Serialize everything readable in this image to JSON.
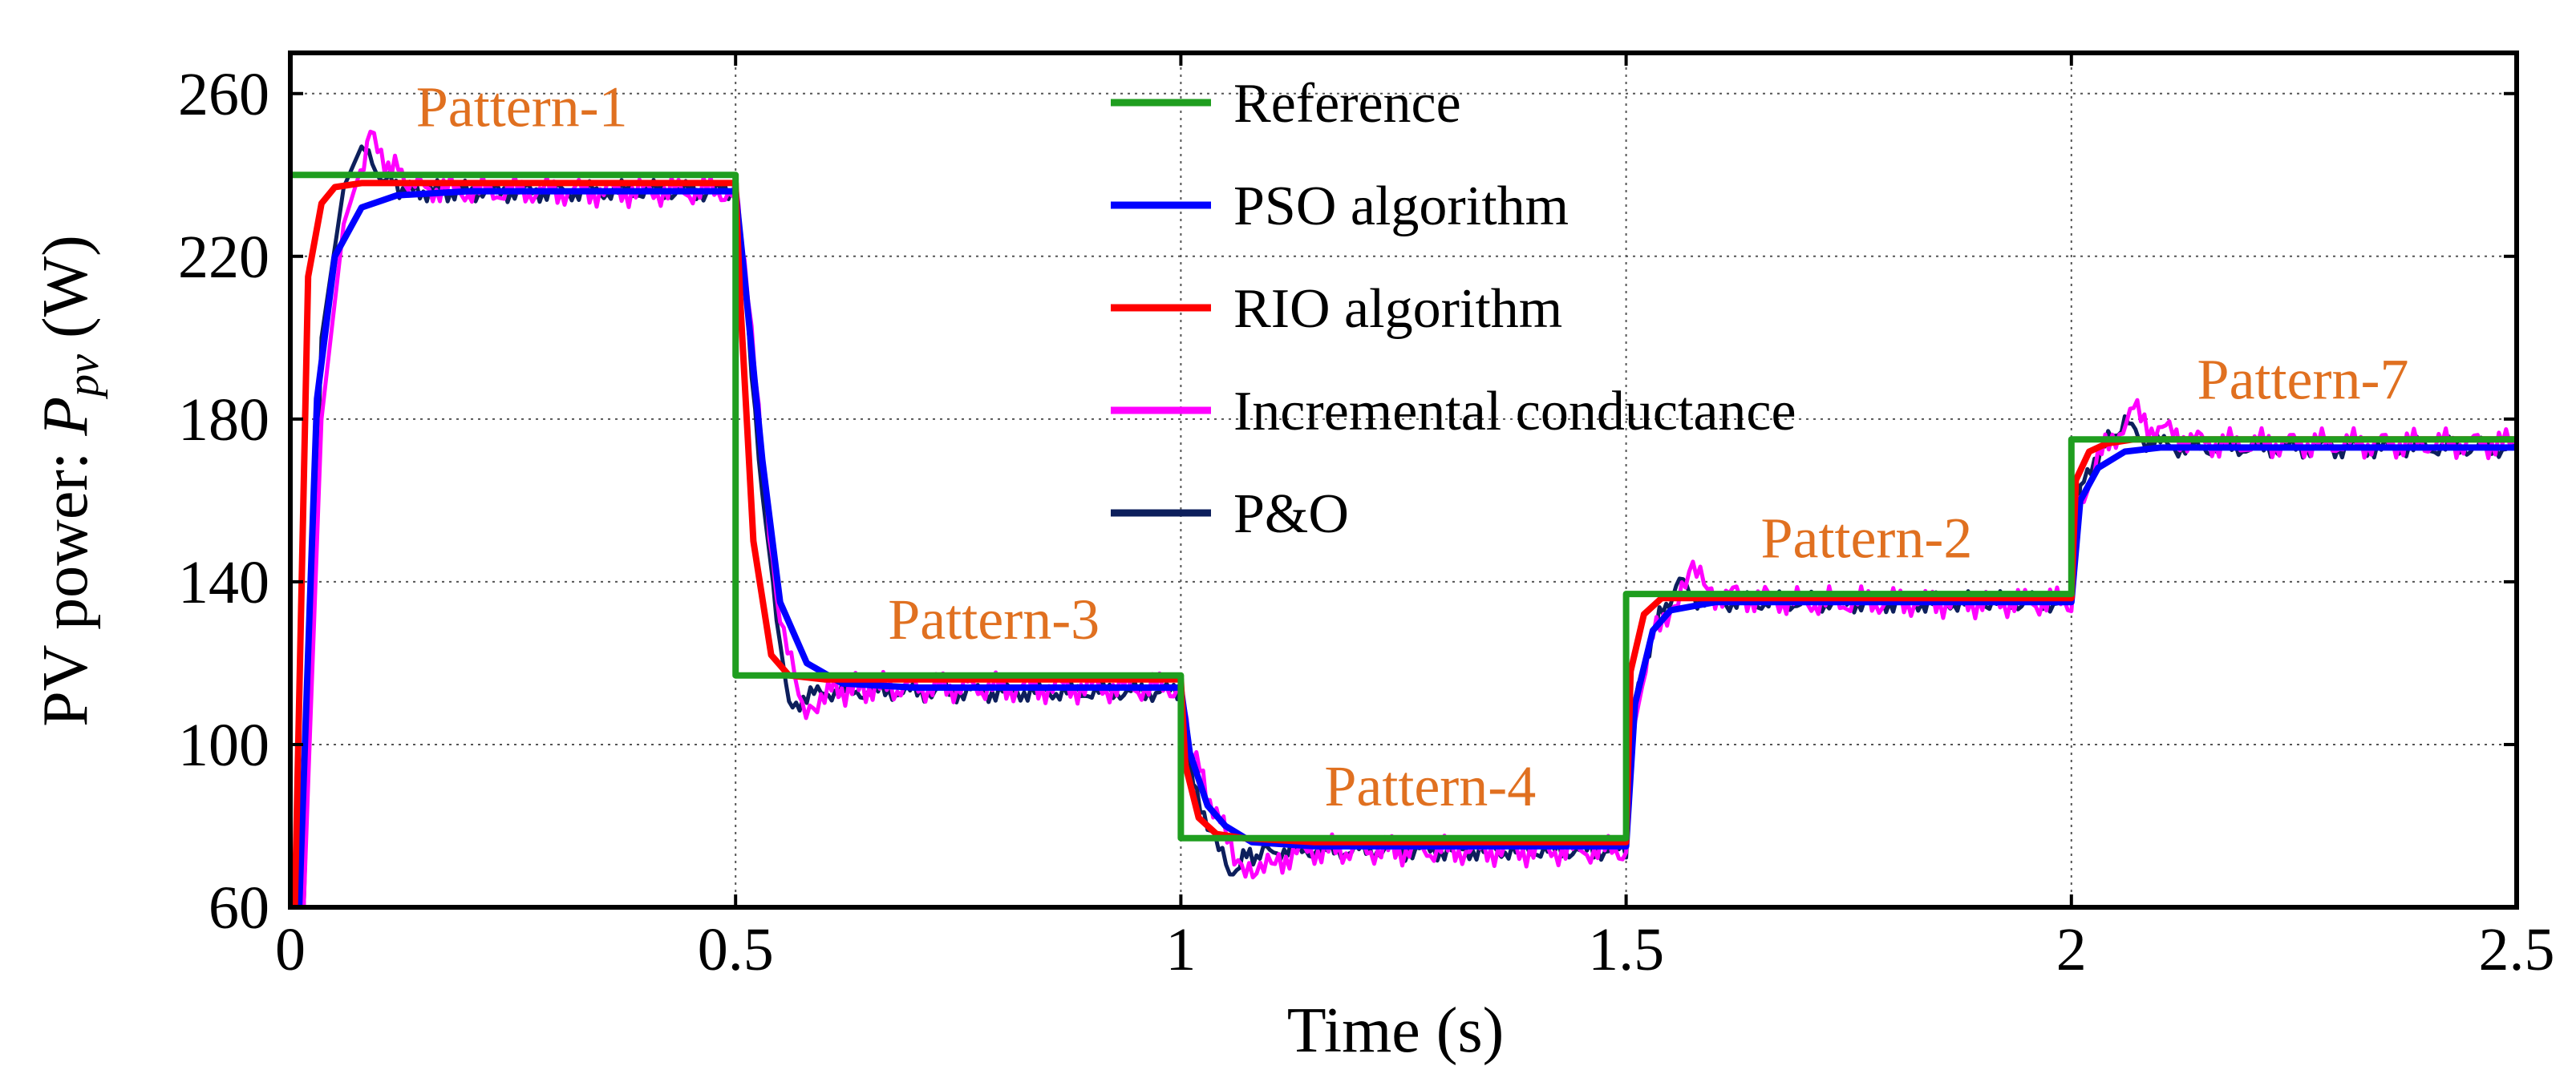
{
  "chart_data": {
    "type": "line",
    "title": "",
    "xlabel": "Time (s)",
    "ylabel_prefix": "PV power: ",
    "ylabel_symbol": "P",
    "ylabel_subscript": "pv",
    "ylabel_unit": " (W)",
    "xlim": [
      0,
      2.5
    ],
    "ylim": [
      60,
      270
    ],
    "grid": true,
    "xticks": [
      0,
      0.5,
      1,
      1.5,
      2,
      2.5
    ],
    "xtick_labels": [
      "0",
      "0.5",
      "1",
      "1.5",
      "2",
      "2.5"
    ],
    "yticks": [
      60,
      100,
      140,
      180,
      220,
      260
    ],
    "ytick_labels": [
      "60",
      "100",
      "140",
      "180",
      "220",
      "260"
    ],
    "legend_position": "top-center",
    "series": [
      {
        "name": "Reference",
        "color": "#1f9e1f",
        "x": [
          0,
          0.5,
          0.5,
          1.0,
          1.0,
          1.5,
          1.5,
          2.0,
          2.0,
          2.5
        ],
        "y": [
          240,
          240,
          117,
          117,
          77,
          77,
          137,
          137,
          175,
          175
        ]
      },
      {
        "name": "PSO algorithm",
        "color": "#0000ff",
        "x": [
          0,
          0.01,
          0.03,
          0.05,
          0.08,
          0.12,
          0.2,
          0.3,
          0.4,
          0.5,
          0.51,
          0.53,
          0.55,
          0.58,
          0.62,
          0.7,
          0.8,
          0.9,
          1.0,
          1.01,
          1.03,
          1.05,
          1.08,
          1.15,
          1.3,
          1.5,
          1.51,
          1.53,
          1.55,
          1.6,
          1.8,
          2.0,
          2.01,
          2.03,
          2.06,
          2.1,
          2.3,
          2.5
        ],
        "y": [
          60,
          60,
          185,
          220,
          232,
          235,
          236,
          236,
          236,
          236,
          215,
          170,
          135,
          120,
          115,
          114,
          114,
          114,
          114,
          98,
          85,
          80,
          76,
          75,
          75,
          75,
          110,
          128,
          133,
          135,
          135,
          135,
          160,
          168,
          172,
          173,
          173,
          173
        ]
      },
      {
        "name": "RIO algorithm",
        "color": "#ff0000",
        "x": [
          0,
          0.005,
          0.02,
          0.035,
          0.05,
          0.08,
          0.12,
          0.2,
          0.3,
          0.4,
          0.5,
          0.505,
          0.52,
          0.54,
          0.56,
          0.6,
          0.7,
          0.8,
          0.9,
          1.0,
          1.005,
          1.02,
          1.04,
          1.07,
          1.15,
          1.3,
          1.5,
          1.505,
          1.52,
          1.54,
          1.6,
          1.8,
          2.0,
          2.005,
          2.02,
          2.04,
          2.07,
          2.3,
          2.5
        ],
        "y": [
          60,
          60,
          215,
          233,
          237,
          238,
          238,
          238,
          238,
          238,
          238,
          210,
          150,
          122,
          117,
          116,
          116,
          116,
          116,
          116,
          95,
          82,
          78,
          77,
          76,
          76,
          76,
          118,
          132,
          136,
          136,
          136,
          136,
          165,
          172,
          174,
          175,
          175,
          175
        ]
      },
      {
        "name": "Incremental conductance",
        "color": "#ff00ff",
        "x": [
          0,
          0.015,
          0.035,
          0.06,
          0.09,
          0.11,
          0.14,
          0.2,
          0.3,
          0.4,
          0.5,
          0.51,
          0.53,
          0.55,
          0.575,
          0.6,
          0.65,
          0.8,
          1.0,
          1.01,
          1.04,
          1.06,
          1.085,
          1.11,
          1.15,
          1.3,
          1.5,
          1.51,
          1.53,
          1.55,
          1.575,
          1.6,
          1.7,
          2.0,
          2.01,
          2.03,
          2.05,
          2.07,
          2.09,
          2.15,
          2.5
        ],
        "y": [
          60,
          60,
          180,
          228,
          249,
          243,
          237,
          236,
          236,
          236,
          236,
          220,
          170,
          130,
          108,
          113,
          114,
          114,
          114,
          100,
          82,
          74,
          67,
          72,
          74,
          74,
          74,
          108,
          126,
          134,
          142,
          137,
          135,
          135,
          160,
          170,
          176,
          182,
          178,
          174,
          174
        ],
        "noise": 0.02
      },
      {
        "name": "P&O",
        "color": "#0d1f5c",
        "x": [
          0,
          0.015,
          0.035,
          0.06,
          0.08,
          0.1,
          0.13,
          0.2,
          0.3,
          0.4,
          0.5,
          0.51,
          0.53,
          0.55,
          0.56,
          0.6,
          0.7,
          0.9,
          1.0,
          1.01,
          1.03,
          1.055,
          1.07,
          1.1,
          1.2,
          1.5,
          1.51,
          1.53,
          1.56,
          1.58,
          1.6,
          1.8,
          2.0,
          2.01,
          2.03,
          2.06,
          2.08,
          2.12,
          2.5
        ],
        "y": [
          60,
          60,
          200,
          237,
          247,
          240,
          236,
          236,
          236,
          236,
          236,
          215,
          160,
          125,
          110,
          113,
          113,
          113,
          113,
          95,
          80,
          68,
          72,
          74,
          74,
          74,
          110,
          128,
          140,
          136,
          135,
          135,
          135,
          162,
          172,
          179,
          175,
          173,
          173
        ],
        "noise": 0.014
      }
    ],
    "annotations": [
      {
        "text": "Pattern-1",
        "x": 0.26,
        "y": 252,
        "color": "#e07020"
      },
      {
        "text": "Pattern-3",
        "x": 0.79,
        "y": 126,
        "color": "#e07020"
      },
      {
        "text": "Pattern-4",
        "x": 1.28,
        "y": 85,
        "color": "#e07020"
      },
      {
        "text": "Pattern-2",
        "x": 1.77,
        "y": 146,
        "color": "#e07020"
      },
      {
        "text": "Pattern-7",
        "x": 2.26,
        "y": 185,
        "color": "#e07020"
      }
    ]
  }
}
